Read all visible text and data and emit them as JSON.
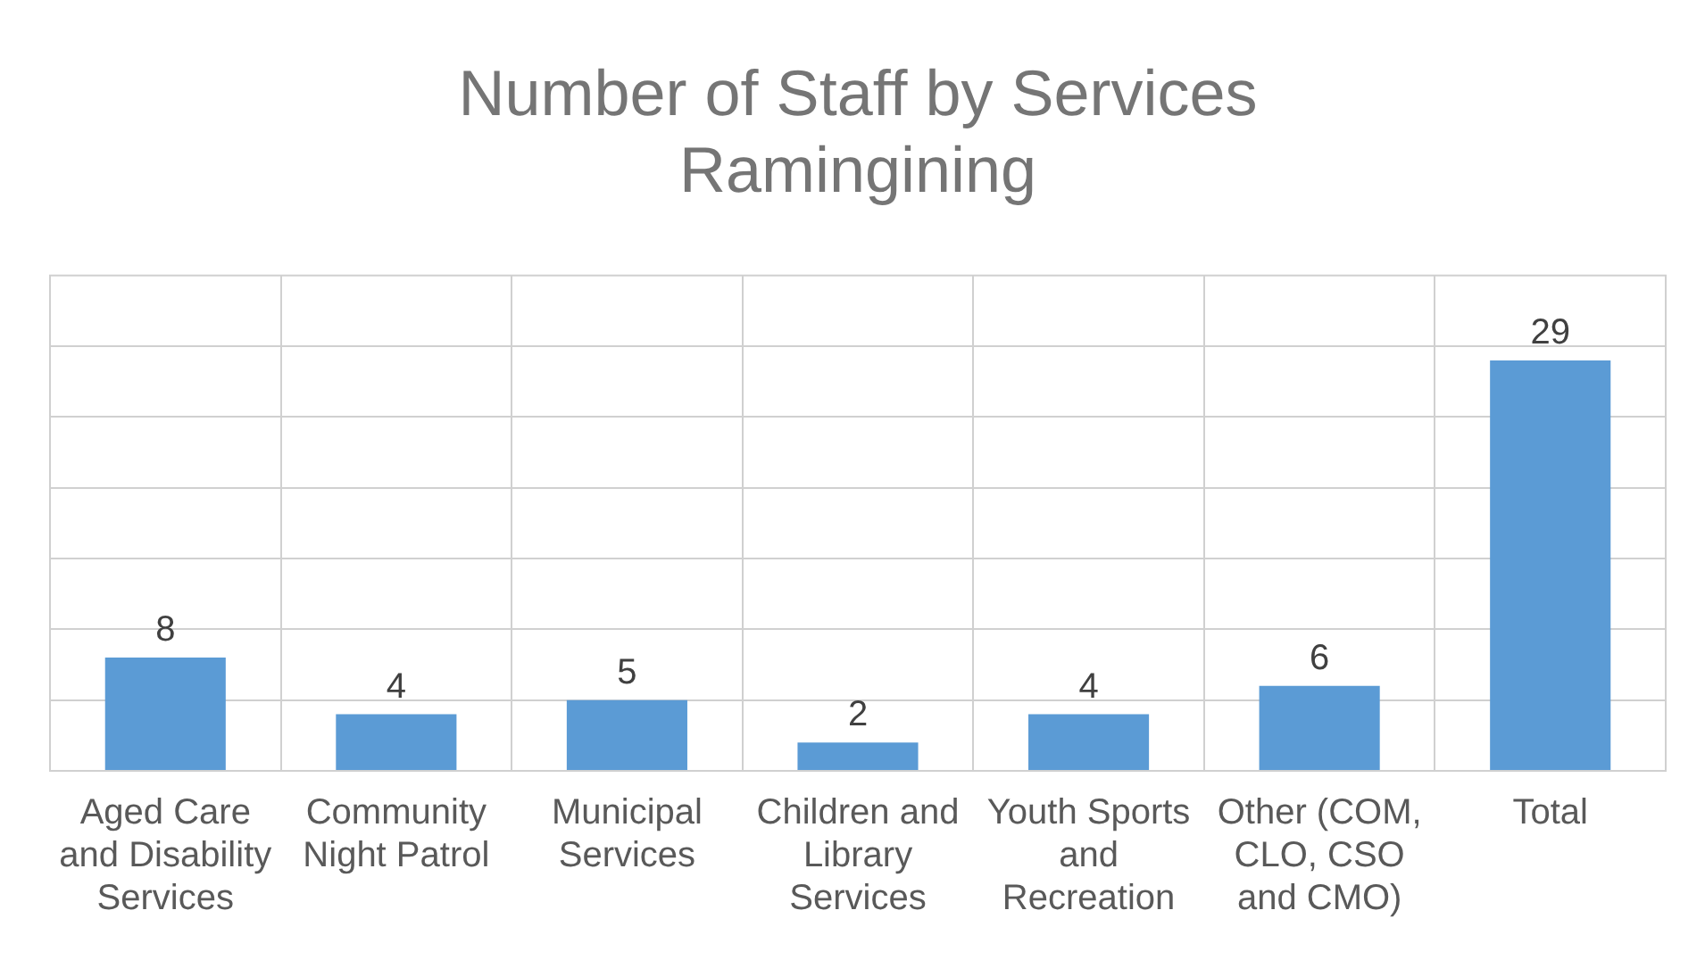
{
  "chart_data": {
    "type": "bar",
    "title": "Number of Staff by Services Ramingining",
    "categories": [
      "Aged Care and Disability Services",
      "Community Night Patrol",
      "Municipal Services",
      "Children and Library Services",
      "Youth Sports and Recreation",
      "Other (COM, CLO, CSO and CMO)",
      "Total"
    ],
    "values": [
      8,
      4,
      5,
      2,
      4,
      6,
      29
    ],
    "color": "#5b9bd5",
    "ylim": [
      0,
      35
    ],
    "yticks": [
      {
        "value": 0,
        "label": null
      },
      {
        "value": 5,
        "label": null
      },
      {
        "value": 10,
        "label": null
      },
      {
        "value": 15,
        "label": null
      },
      {
        "value": 20,
        "label": null
      },
      {
        "value": 25,
        "label": null
      },
      {
        "value": 30,
        "label": null
      }
    ],
    "grid": true,
    "data_labels": true,
    "tick_labels": "x"
  }
}
